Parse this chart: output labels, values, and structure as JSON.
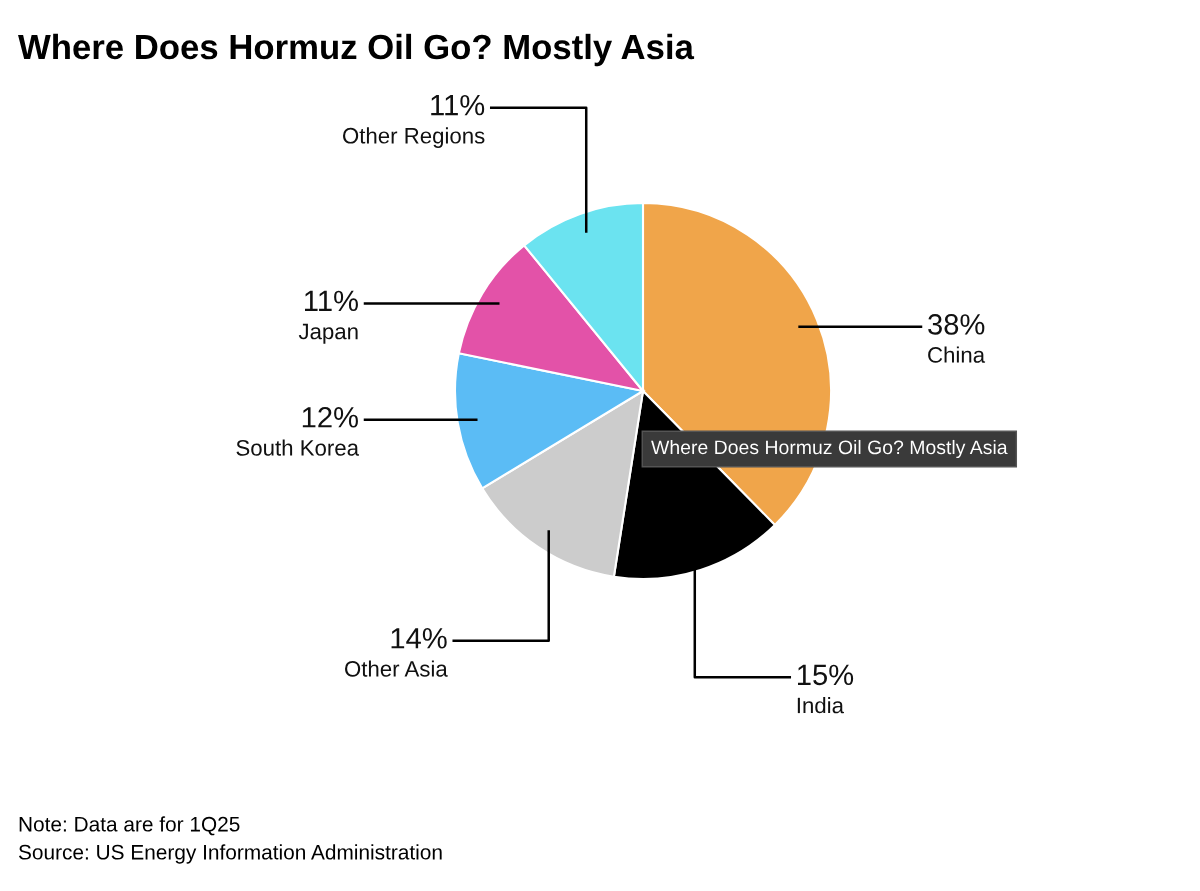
{
  "chart_data": {
    "type": "pie",
    "title": "Where Does Hormuz Oil Go? Mostly Asia",
    "categories": [
      "China",
      "India",
      "Other Asia",
      "South Korea",
      "Japan",
      "Other Regions"
    ],
    "values": [
      38,
      15,
      14,
      12,
      11,
      11
    ],
    "value_labels": [
      "38%",
      "15%",
      "14%",
      "12%",
      "11%",
      "11%"
    ],
    "colors": [
      "#f0a54a",
      "#000000",
      "#cccccc",
      "#5bbcf5",
      "#e352a8",
      "#6be3f0"
    ],
    "annotations": [
      "Where Does Hormuz Oil Go? Mostly Asia",
      "Note: Data are for 1Q25",
      "Source: US Energy Information Administration"
    ]
  }
}
